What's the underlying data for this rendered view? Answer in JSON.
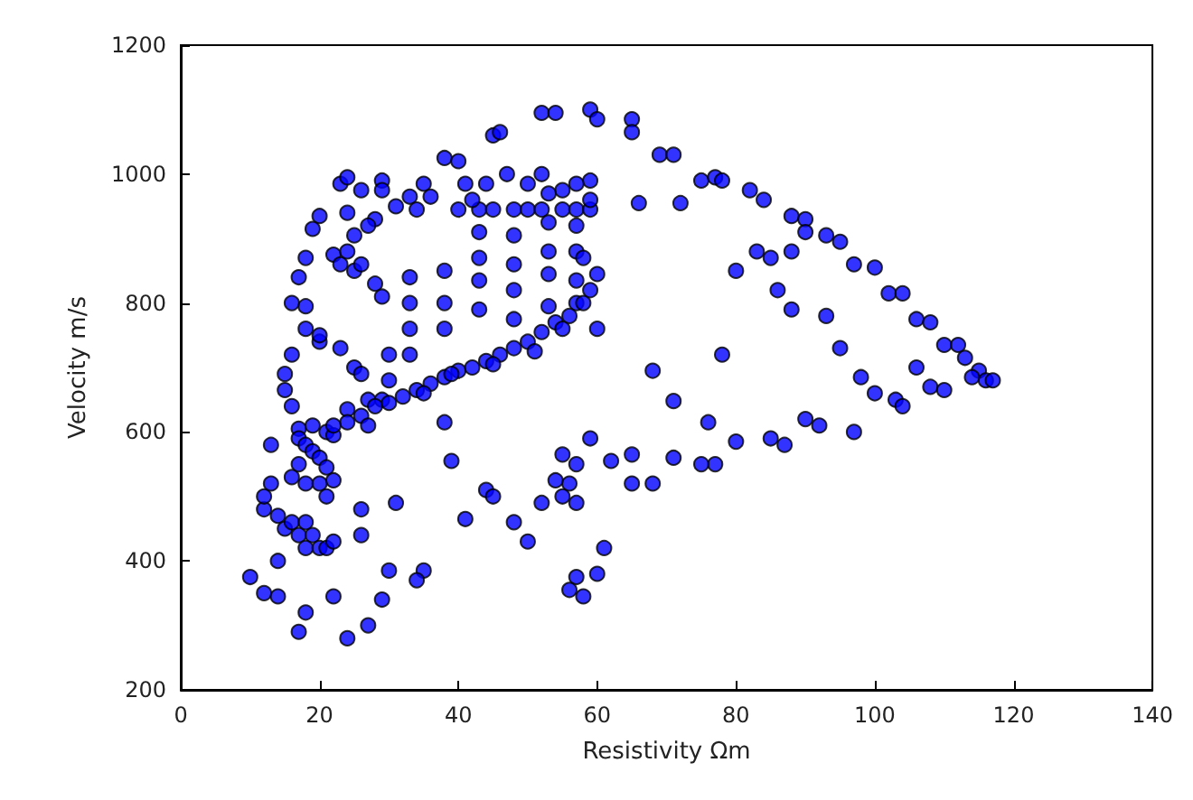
{
  "chart_data": {
    "type": "scatter",
    "xlabel": "Resistivity Ωm",
    "ylabel": "Velocity m/s",
    "xlim": [
      0,
      140
    ],
    "ylim": [
      200,
      1200
    ],
    "xticks": [
      0,
      20,
      40,
      60,
      80,
      100,
      120,
      140
    ],
    "yticks": [
      200,
      400,
      600,
      800,
      1000,
      1200
    ],
    "grid": false,
    "marker": "circle",
    "series": [
      {
        "color": "#0000ff",
        "x": [
          23,
          24,
          29,
          33,
          35,
          38,
          40,
          45,
          46,
          52,
          54,
          59,
          60,
          65,
          65,
          69,
          71,
          75,
          77,
          78,
          82,
          84,
          88,
          90,
          93,
          95,
          97,
          100,
          102,
          104,
          106,
          108,
          110,
          112,
          113,
          115,
          116,
          117,
          114,
          90,
          92,
          97,
          100,
          103,
          104,
          106,
          108,
          110,
          98,
          95,
          93,
          88,
          86,
          80,
          83,
          78,
          80,
          85,
          87,
          76,
          77,
          75,
          71,
          71,
          65,
          65,
          68,
          62,
          59,
          55,
          57,
          56,
          54,
          57,
          56,
          58,
          60,
          61,
          52,
          55,
          57,
          48,
          50,
          44,
          45,
          41,
          39,
          38,
          60,
          60,
          68,
          66,
          72,
          85,
          88,
          90,
          40,
          43,
          45,
          48,
          50,
          52,
          55,
          57,
          59,
          59,
          59,
          57,
          55,
          53,
          52,
          50,
          47,
          44,
          42,
          41,
          36,
          34,
          31,
          29,
          28,
          27,
          25,
          24,
          26,
          43,
          43,
          43,
          43,
          48,
          48,
          48,
          48,
          53,
          53,
          53,
          53,
          57,
          57,
          57,
          57,
          58,
          38,
          38,
          38,
          33,
          33,
          33,
          33,
          30,
          30,
          29,
          20,
          19,
          18,
          17,
          16,
          18,
          20,
          23,
          25,
          26,
          27,
          22,
          23,
          25,
          26,
          24,
          28,
          29,
          18,
          20,
          16,
          15,
          15,
          16,
          17,
          17,
          18,
          19,
          20,
          21,
          22,
          19,
          21,
          24,
          18,
          16,
          24,
          26,
          28,
          30,
          32,
          34,
          36,
          38,
          40,
          42,
          44,
          46,
          48,
          50,
          52,
          54,
          56,
          58,
          59,
          55,
          51,
          45,
          39,
          35,
          27,
          22,
          22,
          12,
          12,
          14,
          13,
          15,
          16,
          17,
          18,
          19,
          18,
          20,
          21,
          22,
          14,
          10,
          12,
          14,
          18,
          17,
          22,
          24,
          27,
          29,
          30,
          35,
          34,
          26,
          26,
          31,
          20,
          21,
          17,
          13
        ],
        "values": [
          985,
          995,
          990,
          965,
          985,
          1025,
          1020,
          1060,
          1065,
          1095,
          1095,
          1100,
          1085,
          1085,
          1065,
          1030,
          1030,
          990,
          995,
          990,
          975,
          960,
          935,
          930,
          905,
          895,
          860,
          855,
          815,
          815,
          775,
          770,
          735,
          735,
          715,
          695,
          680,
          680,
          685,
          620,
          610,
          600,
          660,
          650,
          640,
          700,
          670,
          665,
          685,
          730,
          780,
          790,
          820,
          850,
          880,
          720,
          585,
          590,
          580,
          615,
          550,
          550,
          648,
          560,
          565,
          520,
          520,
          555,
          590,
          565,
          550,
          520,
          525,
          375,
          355,
          345,
          380,
          420,
          490,
          500,
          490,
          460,
          430,
          510,
          500,
          465,
          555,
          615,
          760,
          845,
          695,
          955,
          955,
          870,
          880,
          910,
          945,
          945,
          945,
          945,
          945,
          945,
          945,
          945,
          945,
          960,
          990,
          985,
          975,
          970,
          1000,
          985,
          1000,
          985,
          960,
          985,
          965,
          945,
          950,
          975,
          930,
          920,
          905,
          940,
          975,
          910,
          870,
          835,
          790,
          905,
          860,
          820,
          775,
          925,
          880,
          845,
          795,
          920,
          880,
          835,
          800,
          870,
          850,
          800,
          760,
          840,
          800,
          760,
          720,
          720,
          680,
          650,
          935,
          915,
          870,
          840,
          800,
          795,
          740,
          730,
          700,
          690,
          650,
          875,
          860,
          850,
          860,
          880,
          830,
          810,
          760,
          750,
          720,
          690,
          665,
          640,
          605,
          590,
          580,
          570,
          560,
          545,
          525,
          610,
          600,
          635,
          520,
          530,
          615,
          625,
          640,
          645,
          655,
          665,
          675,
          685,
          695,
          700,
          710,
          720,
          730,
          740,
          755,
          770,
          780,
          800,
          820,
          760,
          725,
          705,
          690,
          660,
          610,
          595,
          610,
          480,
          500,
          470,
          520,
          450,
          460,
          440,
          460,
          440,
          420,
          420,
          420,
          430,
          400,
          375,
          350,
          345,
          320,
          290,
          345,
          280,
          300,
          340,
          385,
          385,
          370,
          440,
          480,
          490,
          520,
          500,
          550,
          580
        ]
      }
    ]
  }
}
